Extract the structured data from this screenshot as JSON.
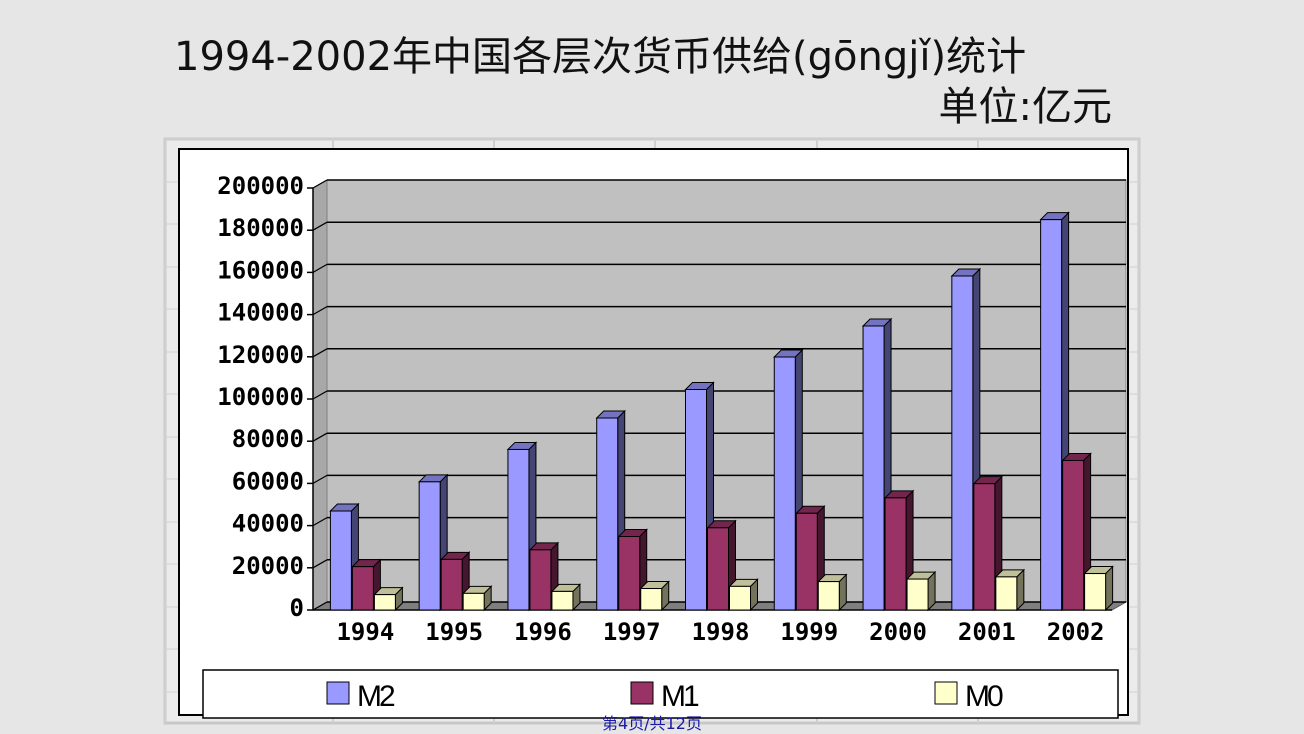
{
  "slide": {
    "title": "1994-2002年中国各层次货币供给(gōngjǐ)统计",
    "unit": "单位:亿元",
    "footer": "第4页/共12页"
  },
  "chart_data": {
    "type": "bar",
    "title": "1994-2002年中国各层次货币供给(gōngjǐ)统计",
    "subtitle": "单位:亿元",
    "categories": [
      "1994",
      "1995",
      "1996",
      "1997",
      "1998",
      "1999",
      "2000",
      "2001",
      "2002"
    ],
    "series": [
      {
        "name": "M2",
        "color": "#9999ff",
        "values": [
          46920,
          60750,
          76095,
          90995,
          104499,
          119898,
          134610,
          158302,
          185007
        ]
      },
      {
        "name": "M1",
        "color": "#993366",
        "values": [
          20540,
          23987,
          28515,
          34826,
          38954,
          45837,
          53147,
          59872,
          70882
        ]
      },
      {
        "name": "M0",
        "color": "#ffffcc",
        "values": [
          7289,
          7886,
          8802,
          10178,
          11204,
          13456,
          14653,
          15689,
          17278
        ]
      }
    ],
    "ylim": [
      0,
      200000
    ],
    "yticks": [
      "0",
      "20000",
      "40000",
      "60000",
      "80000",
      "100000",
      "120000",
      "140000",
      "160000",
      "180000",
      "200000"
    ],
    "grid": true,
    "legend": "bottom",
    "style": "3d-column"
  }
}
